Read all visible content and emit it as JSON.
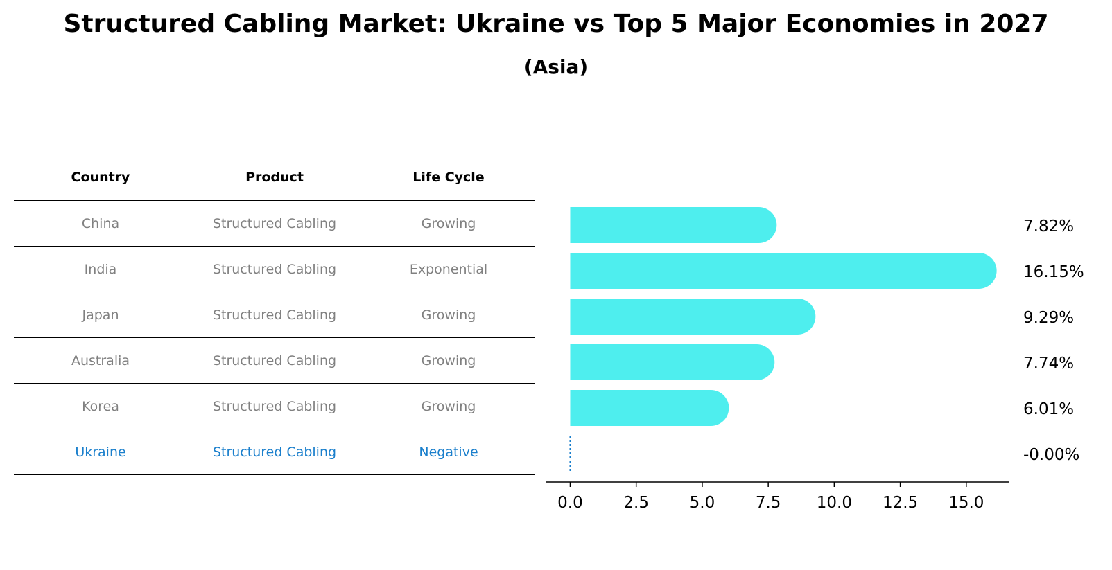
{
  "title": "Structured Cabling Market: Ukraine vs Top 5 Major Economies in 2027",
  "subtitle": "(Asia)",
  "table": {
    "headers": [
      "Country",
      "Product",
      "Life Cycle"
    ],
    "rows": [
      {
        "country": "China",
        "product": "Structured Cabling",
        "life_cycle": "Growing"
      },
      {
        "country": "India",
        "product": "Structured Cabling",
        "life_cycle": "Exponential"
      },
      {
        "country": "Japan",
        "product": "Structured Cabling",
        "life_cycle": "Growing"
      },
      {
        "country": "Australia",
        "product": "Structured Cabling",
        "life_cycle": "Growing"
      },
      {
        "country": "Korea",
        "product": "Structured Cabling",
        "life_cycle": "Growing"
      },
      {
        "country": "Ukraine",
        "product": "Structured Cabling",
        "life_cycle": "Negative"
      }
    ]
  },
  "colors": {
    "bar": "#4eeeee",
    "highlight": "#1a7fcc",
    "muted": "#808080"
  },
  "chart_data": {
    "type": "bar",
    "orientation": "horizontal",
    "categories": [
      "China",
      "India",
      "Japan",
      "Australia",
      "Korea",
      "Ukraine"
    ],
    "values": [
      7.82,
      16.15,
      9.29,
      7.74,
      6.01,
      -0.0
    ],
    "value_labels": [
      "7.82%",
      "16.15%",
      "9.29%",
      "7.74%",
      "6.01%",
      "-0.00%"
    ],
    "xlim": [
      -0.8,
      17.0
    ],
    "xticks": [
      0.0,
      2.5,
      5.0,
      7.5,
      10.0,
      12.5,
      15.0
    ],
    "xtick_labels": [
      "0.0",
      "2.5",
      "5.0",
      "7.5",
      "10.0",
      "12.5",
      "15.0"
    ],
    "xlabel": "",
    "ylabel": "",
    "grid": false,
    "legend": "none"
  }
}
